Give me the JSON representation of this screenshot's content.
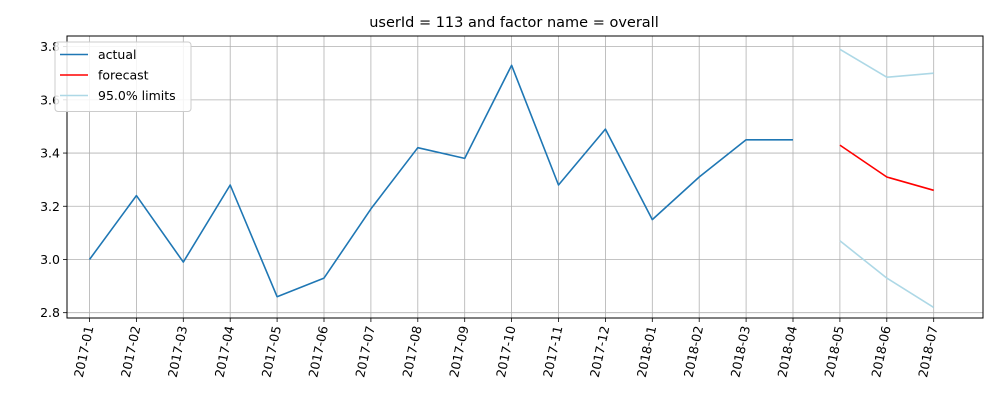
{
  "chart_data": {
    "type": "line",
    "title": "userId = 113 and factor name = overall",
    "xlabel": "",
    "ylabel": "",
    "categories": [
      "2017-01",
      "2017-02",
      "2017-03",
      "2017-04",
      "2017-05",
      "2017-06",
      "2017-07",
      "2017-08",
      "2017-09",
      "2017-10",
      "2017-11",
      "2017-12",
      "2018-01",
      "2018-02",
      "2018-03",
      "2018-04",
      "2018-05",
      "2018-06",
      "2018-07"
    ],
    "ylim": [
      2.78,
      3.84
    ],
    "yticks": [
      "2.8",
      "3.0",
      "3.2",
      "3.4",
      "3.6",
      "3.8"
    ],
    "grid": true,
    "legend_position": "top-left",
    "series": [
      {
        "name": "actual",
        "color": "#1f77b4",
        "x": [
          "2017-01",
          "2017-02",
          "2017-03",
          "2017-04",
          "2017-05",
          "2017-06",
          "2017-07",
          "2017-08",
          "2017-09",
          "2017-10",
          "2017-11",
          "2017-12",
          "2018-01",
          "2018-02",
          "2018-03",
          "2018-04"
        ],
        "values": [
          3.0,
          3.24,
          2.99,
          3.28,
          2.86,
          2.93,
          3.19,
          3.42,
          3.38,
          3.73,
          3.28,
          3.49,
          3.15,
          3.31,
          3.45,
          3.45
        ]
      },
      {
        "name": "forecast",
        "color": "#ff0000",
        "x": [
          "2018-05",
          "2018-06",
          "2018-07"
        ],
        "values": [
          3.43,
          3.31,
          3.26
        ]
      },
      {
        "name": "95.0% limits",
        "color": "#add8e6",
        "x": [
          "2018-05",
          "2018-06",
          "2018-07"
        ],
        "values": [
          3.79,
          3.685,
          3.7
        ]
      },
      {
        "name": "",
        "color": "#add8e6",
        "in_legend": false,
        "x": [
          "2018-05",
          "2018-06",
          "2018-07"
        ],
        "values": [
          3.07,
          2.93,
          2.82
        ]
      }
    ]
  }
}
